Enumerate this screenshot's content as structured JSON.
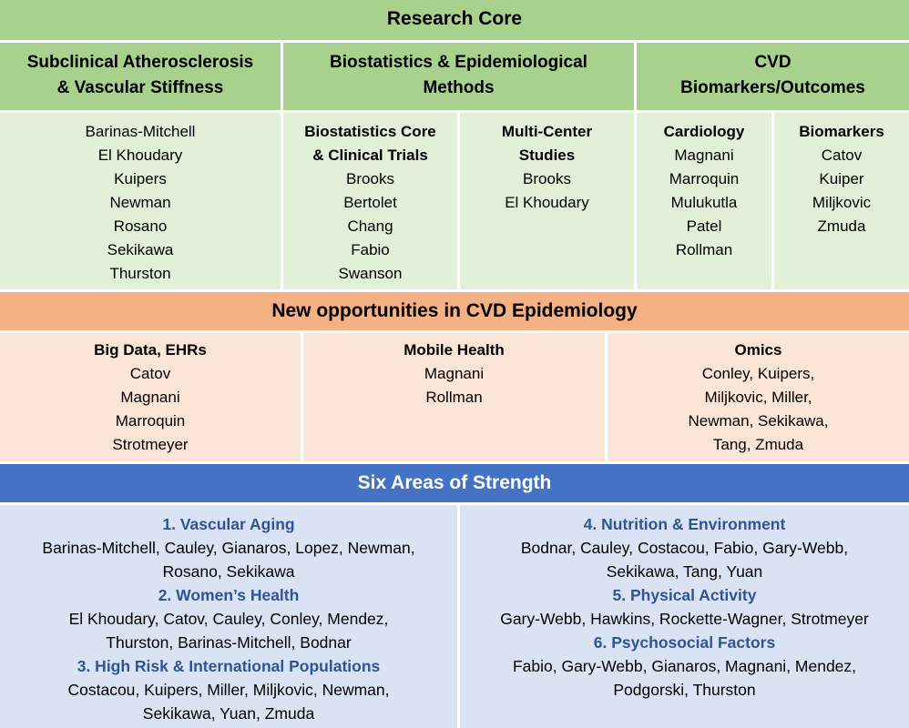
{
  "research_core": {
    "title": "Research Core",
    "columns": [
      {
        "heading_lines": [
          "Subclinical Atherosclerosis",
          "& Vascular Stiffness"
        ]
      },
      {
        "heading_lines": [
          "Biostatistics & Epidemiological",
          "Methods"
        ]
      },
      {
        "heading_lines": [
          "CVD",
          "Biomarkers/Outcomes"
        ]
      }
    ],
    "groups": [
      {
        "title_lines": [],
        "names": [
          "Barinas-Mitchell",
          "El Khoudary",
          "Kuipers",
          "Newman",
          "Rosano",
          "Sekikawa",
          "Thurston"
        ]
      },
      {
        "title_lines": [
          "Biostatistics Core",
          "& Clinical Trials"
        ],
        "names": [
          "Brooks",
          "Bertolet",
          "Chang",
          "Fabio",
          "Swanson"
        ]
      },
      {
        "title_lines": [
          "Multi-Center",
          "Studies"
        ],
        "names": [
          "Brooks",
          "El Khoudary"
        ]
      },
      {
        "title_lines": [
          "Cardiology"
        ],
        "names": [
          "Magnani",
          "Marroquin",
          "Mulukutla",
          "Patel",
          "Rollman"
        ]
      },
      {
        "title_lines": [
          "Biomarkers"
        ],
        "names": [
          "Catov",
          "Kuiper",
          "Miljkovic",
          "Zmuda"
        ]
      }
    ]
  },
  "opportunities": {
    "title": "New opportunities in CVD Epidemiology",
    "groups": [
      {
        "title": "Big Data, EHRs",
        "lines": [
          "Catov",
          "Magnani",
          "Marroquin",
          "Strotmeyer"
        ]
      },
      {
        "title": "Mobile Health",
        "lines": [
          "Magnani",
          "Rollman"
        ]
      },
      {
        "title": "Omics",
        "lines": [
          "Conley, Kuipers,",
          "Miljkovic, Miller,",
          "Newman, Sekikawa,",
          "Tang, Zmuda"
        ]
      }
    ]
  },
  "strengths": {
    "title": "Six Areas of Strength",
    "left": [
      {
        "heading": "1. Vascular Aging",
        "lines": [
          "Barinas-Mitchell, Cauley, Gianaros, Lopez, Newman,",
          "Rosano, Sekikawa"
        ]
      },
      {
        "heading": "2. Women’s Health",
        "lines": [
          "El Khoudary, Catov, Cauley, Conley, Mendez,",
          "Thurston, Barinas-Mitchell, Bodnar"
        ]
      },
      {
        "heading": "3. High Risk & International Populations",
        "lines": [
          "Costacou, Kuipers, Miller, Miljkovic, Newman,",
          "Sekikawa, Yuan, Zmuda"
        ]
      }
    ],
    "right": [
      {
        "heading": "4. Nutrition & Environment",
        "lines": [
          "Bodnar, Cauley, Costacou, Fabio, Gary-Webb,",
          "Sekikawa, Tang, Yuan"
        ]
      },
      {
        "heading": "5. Physical Activity",
        "lines": [
          "Gary-Webb, Hawkins, Rockette-Wagner, Strotmeyer"
        ]
      },
      {
        "heading": "6. Psychosocial Factors",
        "lines": [
          "Fabio, Gary-Webb, Gianaros, Magnani, Mendez,",
          "Podgorski, Thurston"
        ]
      }
    ]
  },
  "colors": {
    "green_header": "#a9d18e",
    "green_body": "#e2efd9",
    "orange_header": "#f4b183",
    "orange_body": "#fbe5d6",
    "blue_header": "#4472c4",
    "blue_body": "#dae3f3",
    "strength_heading": "#2f5496"
  }
}
